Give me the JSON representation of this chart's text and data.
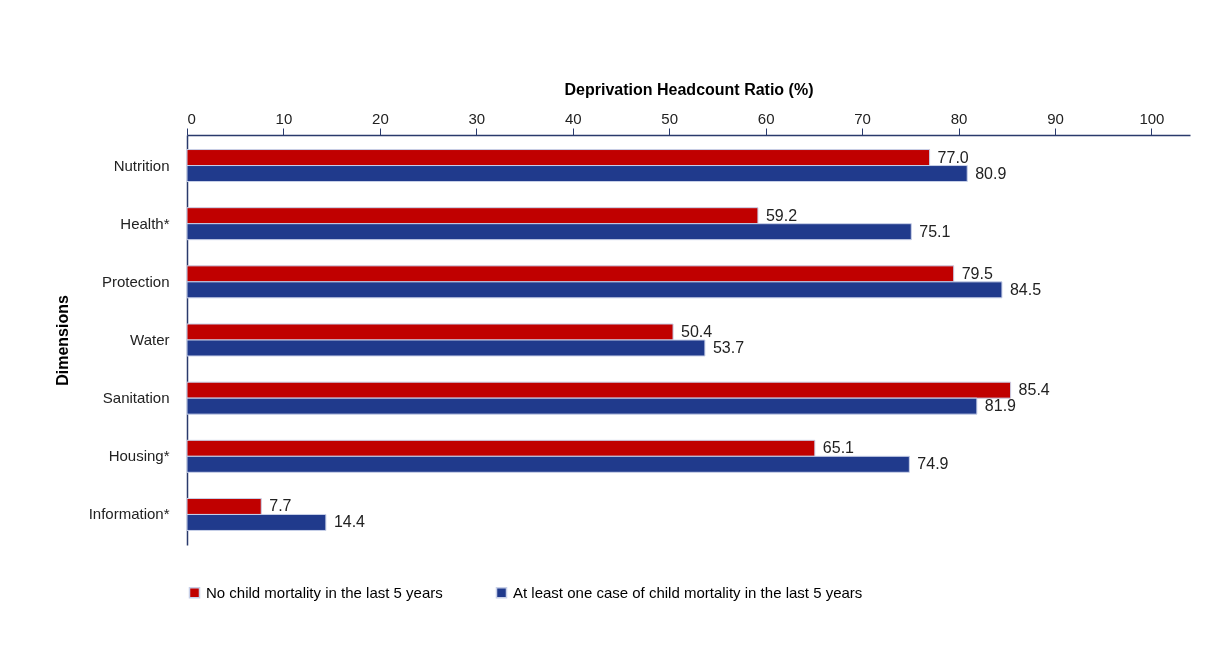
{
  "chart_data": {
    "type": "bar",
    "orientation": "horizontal",
    "xlabel": "Deprivation Headcount Ratio (%)",
    "ylabel": "Dimensions",
    "categories": [
      "Nutrition",
      "Health*",
      "Protection",
      "Water",
      "Sanitation",
      "Housing*",
      "Information*"
    ],
    "series": [
      {
        "name": "No child mortality in the last 5 years",
        "color": "#c00000",
        "values": [
          77.0,
          59.2,
          79.5,
          50.4,
          85.4,
          65.1,
          7.7
        ],
        "value_labels": [
          "77.0",
          "59.2",
          "79.5",
          "50.4",
          "85.4",
          "65.1",
          "7.7"
        ]
      },
      {
        "name": "At least one case of child mortality in the last 5 years",
        "color": "#203a8c",
        "values": [
          80.9,
          75.1,
          84.5,
          53.7,
          81.9,
          74.9,
          14.4
        ],
        "value_labels": [
          "80.9",
          "75.1",
          "84.5",
          "53.7",
          "81.9",
          "74.9",
          "14.4"
        ]
      }
    ],
    "xlim": [
      0,
      104
    ],
    "xticks": [
      0,
      10,
      20,
      30,
      40,
      50,
      60,
      70,
      80,
      90,
      100
    ],
    "legend": "bottom",
    "grid": false
  }
}
